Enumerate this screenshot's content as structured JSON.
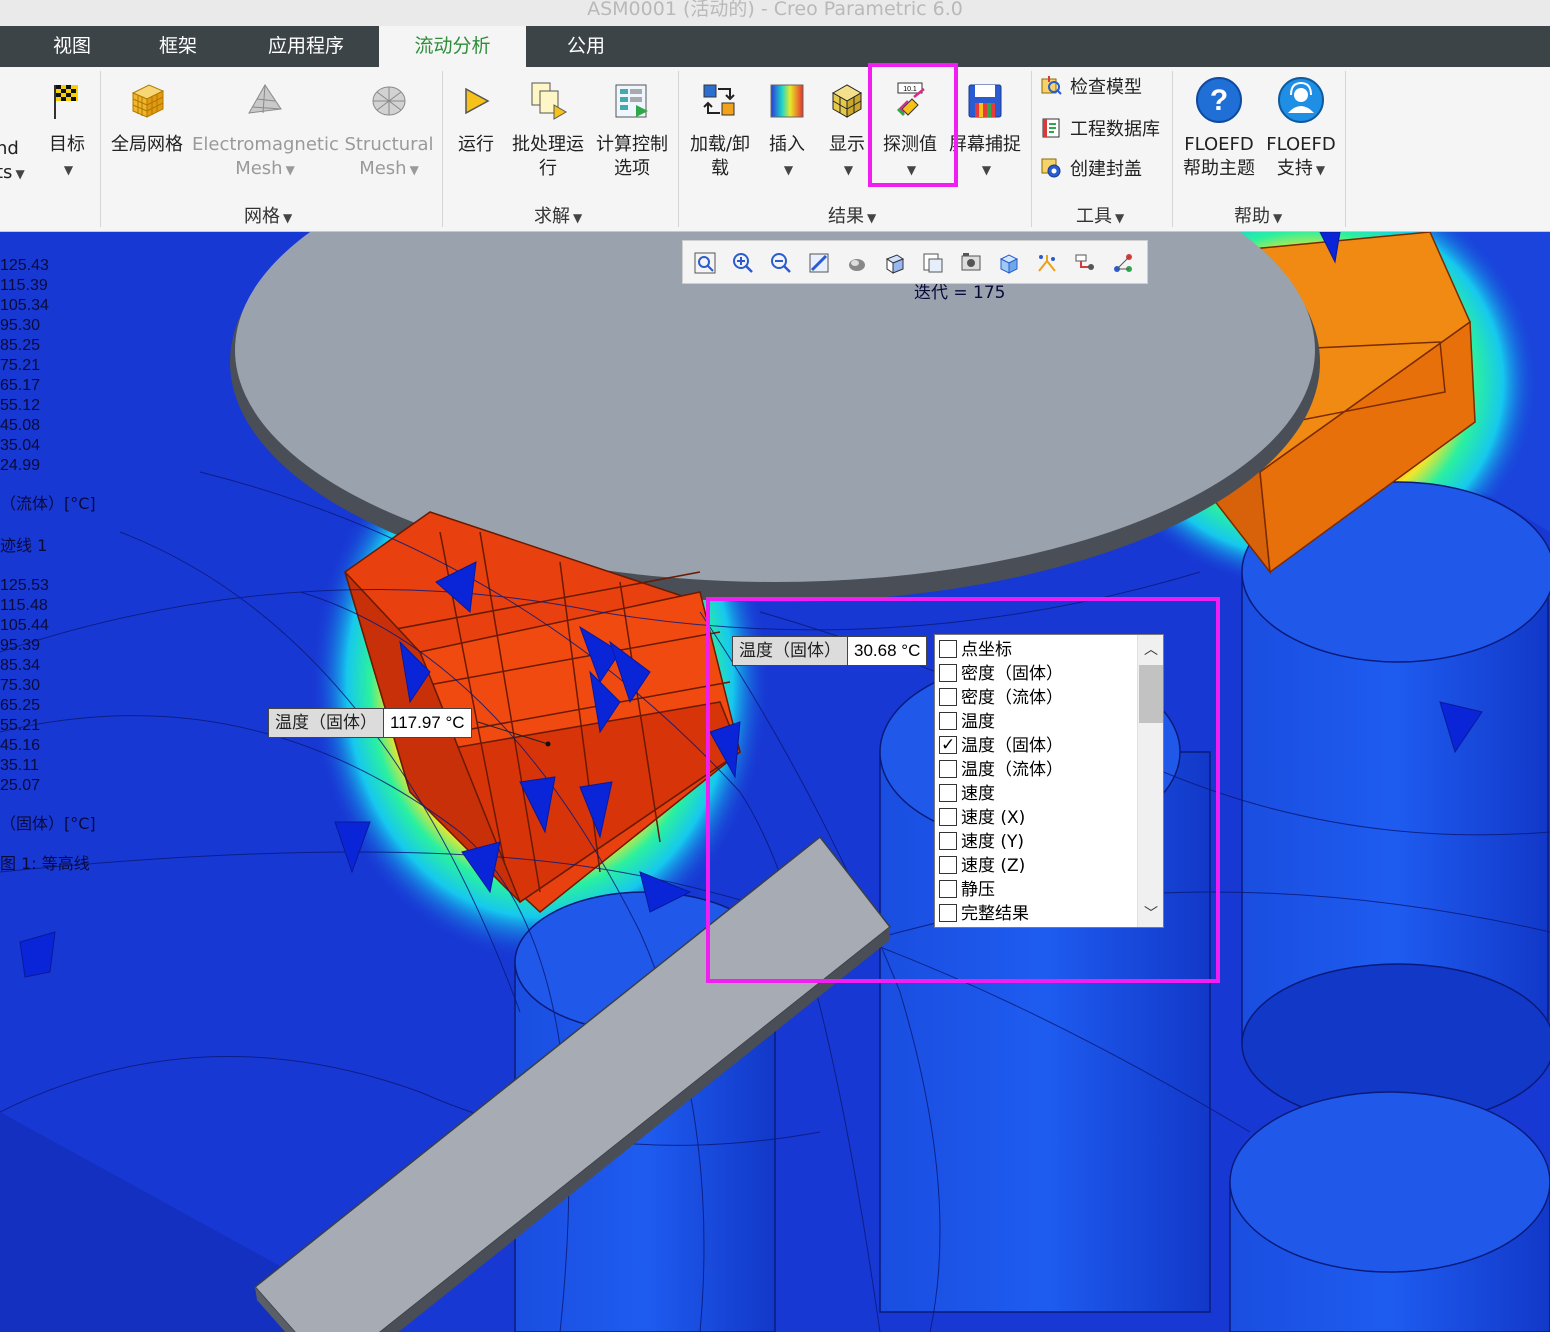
{
  "window": {
    "title": "ASM0001 (活动的) - Creo Parametric 6.0"
  },
  "tabs": [
    {
      "label": "视图"
    },
    {
      "label": "框架"
    },
    {
      "label": "应用程序"
    },
    {
      "label": "流动分析",
      "active": true
    },
    {
      "label": "公用"
    }
  ],
  "ribbon": {
    "partial_left": {
      "line1": "nd",
      "line2": "ts"
    },
    "goal": {
      "label": "目标"
    },
    "global_mesh": {
      "label": "全局网格"
    },
    "em_mesh": {
      "line1": "Electromagnetic",
      "line2": "Mesh"
    },
    "struct_mesh": {
      "line1": "Structural",
      "line2": "Mesh"
    },
    "mesh_group": "网格",
    "run": {
      "label": "运行"
    },
    "batch": {
      "line1": "批处理运",
      "line2": "行"
    },
    "calc_ctrl": {
      "line1": "计算控制",
      "line2": "选项"
    },
    "solve_group": "求解",
    "load_unload": {
      "line1": "加载/卸",
      "line2": "载"
    },
    "insert": {
      "label": "插入"
    },
    "display": {
      "label": "显示"
    },
    "probe": {
      "label": "探测值"
    },
    "screen_capture": {
      "label": "屏幕捕捉"
    },
    "results_group": "结果",
    "check_model": "检查模型",
    "eng_db": "工程数据库",
    "create_lid": "创建封盖",
    "tools_group": "工具",
    "floefd_help": {
      "line1": "FLOEFD",
      "line2": "帮助主题"
    },
    "floefd_support": {
      "line1": "FLOEFD",
      "line2": "支持"
    },
    "help_group": "帮助"
  },
  "viewport": {
    "iteration": "迭代 = 175",
    "legend1": [
      "125.43",
      "115.39",
      "105.34",
      "95.30",
      "85.25",
      "75.21",
      "65.17",
      "55.12",
      "45.08",
      "35.04",
      "24.99"
    ],
    "legend1_title": "（流体）[°C]",
    "legend1_sub": "迹线 1",
    "legend2": [
      "125.53",
      "115.48",
      "105.44",
      "95.39",
      "85.34",
      "75.30",
      "65.25",
      "55.21",
      "45.16",
      "35.11",
      "25.07"
    ],
    "legend2_title": "（固体）[°C]",
    "legend2_sub": "图 1: 等高线",
    "probe1": {
      "label": "温度（固体）",
      "value": "117.97 °C"
    },
    "probe2": {
      "label": "温度（固体）",
      "value": "30.68 °C"
    },
    "param_list": [
      {
        "label": "点坐标",
        "checked": false
      },
      {
        "label": "密度（固体）",
        "checked": false
      },
      {
        "label": "密度（流体）",
        "checked": false
      },
      {
        "label": "温度",
        "checked": false
      },
      {
        "label": "温度（固体）",
        "checked": true
      },
      {
        "label": "温度（流体）",
        "checked": false
      },
      {
        "label": "速度",
        "checked": false
      },
      {
        "label": "速度 (X)",
        "checked": false
      },
      {
        "label": "速度 (Y)",
        "checked": false
      },
      {
        "label": "速度 (Z)",
        "checked": false
      },
      {
        "label": "静压",
        "checked": false
      },
      {
        "label": "完整结果",
        "checked": false
      }
    ]
  },
  "colors": {
    "highlight": "#f01ef0",
    "accent_tab": "#2f8d3a",
    "field_blue": "#1838d4"
  }
}
